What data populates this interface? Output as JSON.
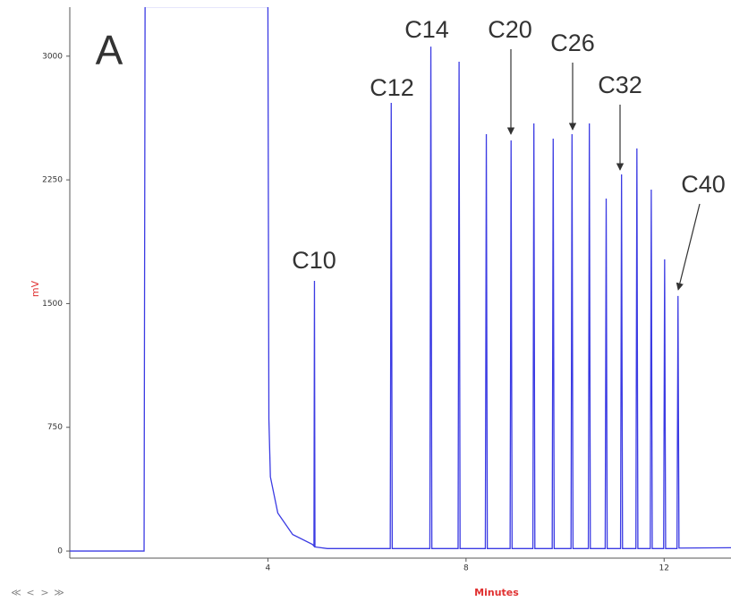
{
  "chart_data": {
    "type": "line",
    "x_label": "Minutes",
    "y_label": "mV",
    "annotations": [
      "A",
      "C10",
      "C12",
      "C14",
      "C20",
      "C26",
      "C32",
      "C40"
    ],
    "xlim": [
      0,
      13.35
    ],
    "ylim": [
      -43,
      3297
    ],
    "xticks": [
      4,
      8,
      12
    ],
    "yticks": [
      0,
      750,
      1500,
      2250,
      3000
    ],
    "grid": false,
    "series": [
      {
        "name": "signal",
        "color": "#3b3be3",
        "x": [
          0,
          1.5,
          1.52,
          4.0,
          4.02,
          4.05,
          4.2,
          4.5,
          4.9,
          4.93,
          4.94,
          4.95,
          5.2,
          6.47,
          6.49,
          6.51,
          7.27,
          7.29,
          7.31,
          7.84,
          7.86,
          7.88,
          8.39,
          8.41,
          8.43,
          8.89,
          8.91,
          8.93,
          9.35,
          9.37,
          9.39,
          9.74,
          9.76,
          9.78,
          10.12,
          10.14,
          10.16,
          10.47,
          10.49,
          10.51,
          10.81,
          10.83,
          10.85,
          11.12,
          11.14,
          11.16,
          11.43,
          11.45,
          11.47,
          11.72,
          11.74,
          11.76,
          11.99,
          12.01,
          12.03,
          12.26,
          12.28,
          12.3,
          13.35
        ],
        "values": [
          0,
          0,
          3300,
          3300,
          800,
          450,
          230,
          100,
          40,
          30,
          1638,
          25,
          15,
          15,
          2717,
          15,
          15,
          3058,
          15,
          15,
          2966,
          15,
          15,
          2527,
          15,
          15,
          2489,
          15,
          15,
          2592,
          15,
          15,
          2500,
          15,
          15,
          2527,
          15,
          15,
          2592,
          15,
          15,
          2137,
          15,
          15,
          2283,
          15,
          15,
          2440,
          15,
          15,
          2191,
          15,
          15,
          1768,
          15,
          15,
          1546,
          18,
          20
        ]
      }
    ]
  },
  "controls": [
    "≪",
    "<",
    ">",
    "≫"
  ]
}
